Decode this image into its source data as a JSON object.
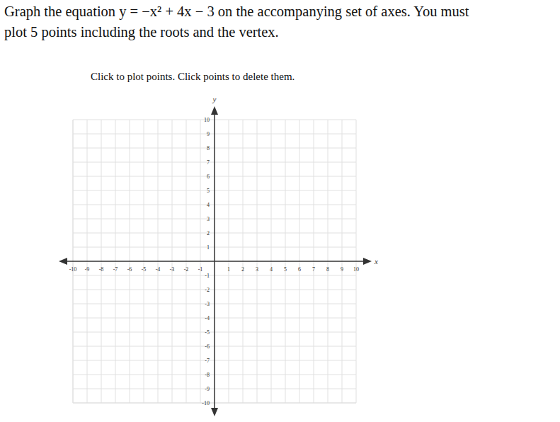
{
  "header": {
    "question": [
      "Graph the equation y = −x² + 4x − 3 on the accompanying set of axes. You must",
      "plot 5 points including the roots and the vertex."
    ],
    "instruction": "Click to plot points. Click points to delete them."
  },
  "chart_data": {
    "type": "scatter",
    "x_label": "x",
    "y_label": "y",
    "x": [],
    "values": [],
    "color": "#1f4fb4",
    "marker": "circle",
    "xlim": [
      -10,
      10
    ],
    "ylim": [
      -10,
      10
    ],
    "xticks": [
      -10,
      -9,
      -8,
      -7,
      -6,
      -5,
      -4,
      -3,
      -2,
      -1,
      1,
      2,
      3,
      4,
      5,
      6,
      7,
      8,
      9,
      10
    ],
    "yticks": [
      -10,
      -9,
      -8,
      -7,
      -6,
      -5,
      -4,
      -3,
      -2,
      -1,
      1,
      2,
      3,
      4,
      5,
      6,
      7,
      8,
      9,
      10
    ],
    "grid": true
  }
}
